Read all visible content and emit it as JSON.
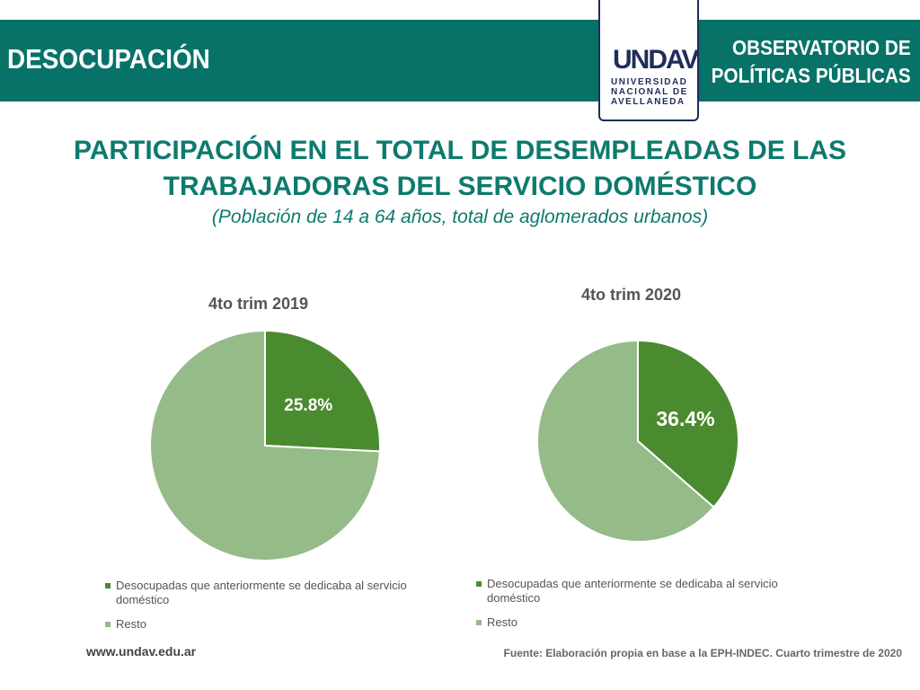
{
  "header": {
    "section": "DESOCUPACIÓN",
    "observatory_line1": "OBSERVATORIO DE",
    "observatory_line2": "POLÍTICAS PÚBLICAS",
    "logo_mark": "UNDAV",
    "logo_text": [
      "UNIVERSIDAD",
      "NACIONAL DE",
      "AVELLANEDA"
    ]
  },
  "colors": {
    "teal": "#077268",
    "dark_green": "#4a8b2f",
    "light_green": "#95bb88"
  },
  "chart_data": [
    {
      "type": "pie",
      "title": "4to trim 2019",
      "labels": [
        "Desocupadas que anteriormente se dedicaba al servicio doméstico",
        "Resto"
      ],
      "values": [
        25.8,
        74.2
      ],
      "data_labels": [
        "25.8%",
        ""
      ]
    },
    {
      "type": "pie",
      "title": "4to trim 2020",
      "labels": [
        "Desocupadas que anteriormente se dedicaba al servicio doméstico",
        "Resto"
      ],
      "values": [
        36.4,
        63.6
      ],
      "data_labels": [
        "36.4%",
        ""
      ]
    }
  ],
  "main": {
    "title_line1": "PARTICIPACIÓN EN EL TOTAL DE DESEMPLEADAS DE LAS",
    "title_line2": "TRABAJADORAS DEL SERVICIO DOMÉSTICO",
    "subtitle": "(Población de 14 a 64 años, total de aglomerados urbanos)"
  },
  "footer": {
    "website": "www.undav.edu.ar",
    "source": "Fuente: Elaboración propia en base a la EPH-INDEC. Cuarto trimestre de 2020"
  }
}
